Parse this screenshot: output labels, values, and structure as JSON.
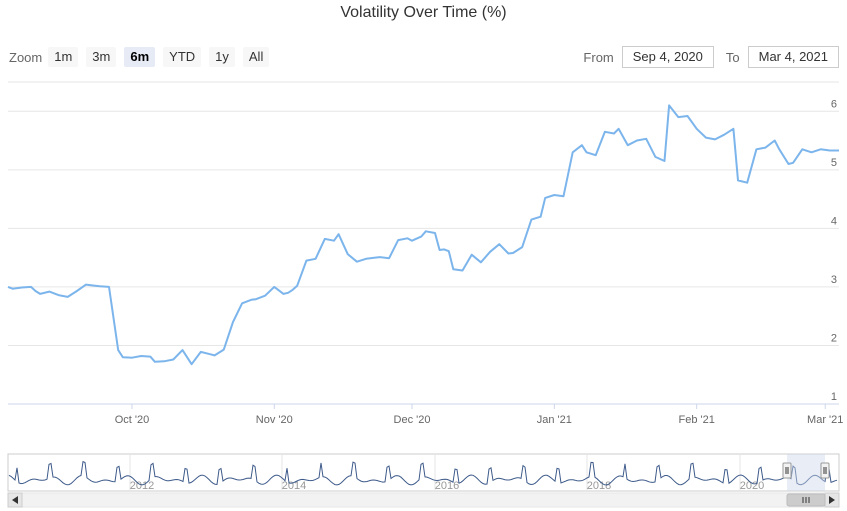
{
  "title": "Volatility Over Time (%)",
  "zoom": {
    "label": "Zoom",
    "buttons": [
      "1m",
      "3m",
      "6m",
      "YTD",
      "1y",
      "All"
    ],
    "selected": "6m"
  },
  "range": {
    "from_label": "From",
    "from_value": "Sep 4, 2020",
    "to_label": "To",
    "to_value": "Mar 4, 2021"
  },
  "colors": {
    "line": "#7cb5ec",
    "grid": "#e6e6e6",
    "navigator_mask": "#ccd6eb"
  },
  "chart_data": {
    "type": "line",
    "title": "Volatility Over Time (%)",
    "xlabel": "",
    "ylabel": "",
    "x_tick_labels": [
      {
        "label": "Oct '20",
        "date": "2020-10-01"
      },
      {
        "label": "Nov '20",
        "date": "2020-11-01"
      },
      {
        "label": "Dec '20",
        "date": "2020-12-01"
      },
      {
        "label": "Jan '21",
        "date": "2021-01-01"
      },
      {
        "label": "Feb '21",
        "date": "2021-02-01"
      },
      {
        "label": "Mar '21",
        "date": "2021-03-01"
      }
    ],
    "y_ticks": [
      1,
      2,
      3,
      4,
      5,
      6
    ],
    "xlim": [
      "2020-09-04",
      "2021-03-04"
    ],
    "ylim": [
      1,
      6.5
    ],
    "grid": true,
    "series": [
      {
        "x": [
          "2020-09-04",
          "2020-09-05",
          "2020-09-07",
          "2020-09-09",
          "2020-09-10",
          "2020-09-11",
          "2020-09-13",
          "2020-09-15",
          "2020-09-17",
          "2020-09-19",
          "2020-09-21",
          "2020-09-23",
          "2020-09-24",
          "2020-09-26",
          "2020-09-28",
          "2020-09-29",
          "2020-10-01",
          "2020-10-03",
          "2020-10-05",
          "2020-10-06",
          "2020-10-08",
          "2020-10-10",
          "2020-10-12",
          "2020-10-14",
          "2020-10-16",
          "2020-10-18",
          "2020-10-19",
          "2020-10-21",
          "2020-10-23",
          "2020-10-25",
          "2020-10-27",
          "2020-10-28",
          "2020-10-30",
          "2020-11-01",
          "2020-11-03",
          "2020-11-04",
          "2020-11-05",
          "2020-11-06",
          "2020-11-08",
          "2020-11-10",
          "2020-11-12",
          "2020-11-14",
          "2020-11-15",
          "2020-11-17",
          "2020-11-19",
          "2020-11-21",
          "2020-11-23",
          "2020-11-24",
          "2020-11-26",
          "2020-11-28",
          "2020-11-30",
          "2020-12-01",
          "2020-12-03",
          "2020-12-04",
          "2020-12-06",
          "2020-12-07",
          "2020-12-08",
          "2020-12-09",
          "2020-12-10",
          "2020-12-12",
          "2020-12-14",
          "2020-12-16",
          "2020-12-18",
          "2020-12-20",
          "2020-12-22",
          "2020-12-23",
          "2020-12-25",
          "2020-12-27",
          "2020-12-29",
          "2020-12-30",
          "2021-01-01",
          "2021-01-02",
          "2021-01-03",
          "2021-01-05",
          "2021-01-07",
          "2021-01-08",
          "2021-01-10",
          "2021-01-12",
          "2021-01-14",
          "2021-01-15",
          "2021-01-17",
          "2021-01-19",
          "2021-01-21",
          "2021-01-23",
          "2021-01-25",
          "2021-01-26",
          "2021-01-28",
          "2021-01-30",
          "2021-02-01",
          "2021-02-03",
          "2021-02-05",
          "2021-02-07",
          "2021-02-09",
          "2021-02-10",
          "2021-02-12",
          "2021-02-14",
          "2021-02-16",
          "2021-02-18",
          "2021-02-19",
          "2021-02-21",
          "2021-02-22",
          "2021-02-24",
          "2021-02-26",
          "2021-02-28",
          "2021-03-02",
          "2021-03-04"
        ],
        "y": [
          3.0,
          2.97,
          2.99,
          3.0,
          2.93,
          2.88,
          2.92,
          2.86,
          2.83,
          2.93,
          3.04,
          3.02,
          3.01,
          3.0,
          1.92,
          1.8,
          1.79,
          1.82,
          1.81,
          1.72,
          1.73,
          1.76,
          1.92,
          1.68,
          1.89,
          1.85,
          1.83,
          1.93,
          2.4,
          2.72,
          2.78,
          2.79,
          2.85,
          3.0,
          2.88,
          2.9,
          2.95,
          3.02,
          3.45,
          3.48,
          3.82,
          3.79,
          3.9,
          3.56,
          3.43,
          3.48,
          3.5,
          3.51,
          3.49,
          3.8,
          3.83,
          3.79,
          3.86,
          3.95,
          3.92,
          3.63,
          3.64,
          3.61,
          3.3,
          3.28,
          3.55,
          3.42,
          3.6,
          3.73,
          3.57,
          3.58,
          3.68,
          4.15,
          4.2,
          4.52,
          4.57,
          4.56,
          4.55,
          5.3,
          5.42,
          5.3,
          5.25,
          5.65,
          5.62,
          5.7,
          5.42,
          5.5,
          5.53,
          5.22,
          5.15,
          6.1,
          5.9,
          5.92,
          5.7,
          5.55,
          5.52,
          5.6,
          5.7,
          4.82,
          4.78,
          5.35,
          5.38,
          5.5,
          5.35,
          5.1,
          5.12,
          5.35,
          5.3,
          5.35,
          5.33,
          5.33
        ]
      }
    ],
    "navigator": {
      "x_tick_labels": [
        "2012",
        "2014",
        "2016",
        "2018",
        "2020"
      ]
    }
  }
}
